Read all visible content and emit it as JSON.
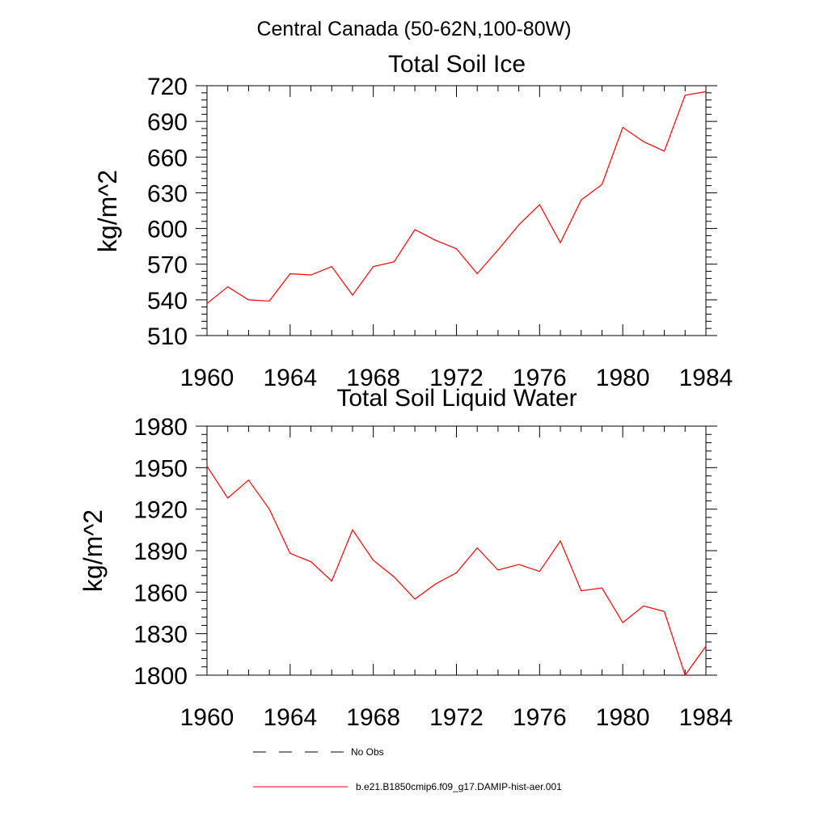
{
  "figure_title": "Central Canada (50-62N,100-80W)",
  "legend": {
    "entries": [
      {
        "label": "No Obs",
        "style": "dashed",
        "color": "#000000"
      },
      {
        "label": "b.e21.B1850cmip6.f09_g17.DAMIP-hist-aer.001",
        "style": "solid",
        "color": "#ff0000"
      }
    ],
    "placement": "bottom-center"
  },
  "colors": {
    "series": "#ff0000",
    "axis": "#000000"
  },
  "chart_data": [
    {
      "type": "line",
      "title": "Total Soil Ice",
      "xlabel": "",
      "ylabel": "kg/m^2",
      "xlim": [
        1960,
        1984
      ],
      "ylim": [
        510,
        720
      ],
      "xticks": [
        1960,
        1964,
        1968,
        1972,
        1976,
        1980,
        1984
      ],
      "yticks": [
        510,
        540,
        570,
        600,
        630,
        660,
        690,
        720
      ],
      "grid": false,
      "x": [
        1960,
        1961,
        1962,
        1963,
        1964,
        1965,
        1966,
        1967,
        1968,
        1969,
        1970,
        1971,
        1972,
        1973,
        1974,
        1975,
        1976,
        1977,
        1978,
        1979,
        1980,
        1981,
        1982,
        1983,
        1984
      ],
      "series": [
        {
          "name": "b.e21.B1850cmip6.f09_g17.DAMIP-hist-aer.001",
          "values": [
            537,
            551,
            540,
            539,
            562,
            561,
            568,
            544,
            568,
            572,
            599,
            590,
            583,
            562,
            582,
            603,
            620,
            588,
            624,
            637,
            685,
            673,
            665,
            712,
            715
          ]
        }
      ]
    },
    {
      "type": "line",
      "title": "Total Soil Liquid Water",
      "xlabel": "",
      "ylabel": "kg/m^2",
      "xlim": [
        1960,
        1984
      ],
      "ylim": [
        1800,
        1980
      ],
      "xticks": [
        1960,
        1964,
        1968,
        1972,
        1976,
        1980,
        1984
      ],
      "yticks": [
        1800,
        1830,
        1860,
        1890,
        1920,
        1950,
        1980
      ],
      "grid": false,
      "x": [
        1960,
        1961,
        1962,
        1963,
        1964,
        1965,
        1966,
        1967,
        1968,
        1969,
        1970,
        1971,
        1972,
        1973,
        1974,
        1975,
        1976,
        1977,
        1978,
        1979,
        1980,
        1981,
        1982,
        1983,
        1984
      ],
      "series": [
        {
          "name": "b.e21.B1850cmip6.f09_g17.DAMIP-hist-aer.001",
          "values": [
            1951,
            1928,
            1941,
            1920,
            1888,
            1882,
            1868,
            1905,
            1883,
            1871,
            1855,
            1866,
            1874,
            1892,
            1876,
            1880,
            1875,
            1897,
            1861,
            1863,
            1838,
            1850,
            1846,
            1800,
            1821
          ]
        }
      ]
    }
  ]
}
